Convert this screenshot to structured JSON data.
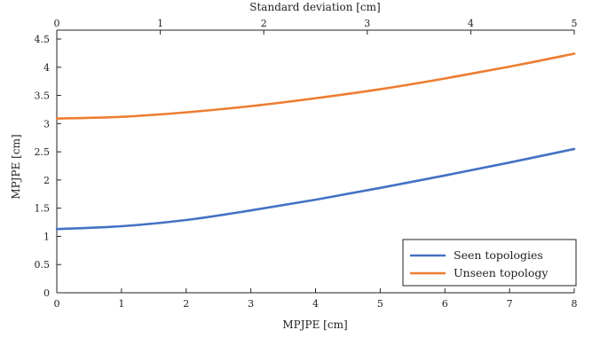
{
  "chart_data": {
    "type": "line",
    "title": "",
    "xlabel": "MPJPE [cm]",
    "ylabel": "MPJPE [cm]",
    "x2label": "Standard deviation [cm]",
    "xlim": [
      0,
      8
    ],
    "ylim": [
      0,
      4.5
    ],
    "x2lim": [
      0,
      5
    ],
    "xticks": [
      "0",
      "1",
      "2",
      "3",
      "4",
      "5",
      "6",
      "7",
      "8"
    ],
    "x2ticks": [
      "0",
      "1",
      "2",
      "3",
      "4",
      "5"
    ],
    "yticks": [
      "0",
      "0.5",
      "1",
      "1.5",
      "2",
      "2.5",
      "3",
      "3.5",
      "4",
      "4.5"
    ],
    "ytick_values": [
      0,
      0.5,
      1,
      1.5,
      2,
      2.5,
      3,
      3.5,
      4,
      4.5
    ],
    "grid": false,
    "legend_position": "bottom-right",
    "series": [
      {
        "name": "Seen topologies",
        "color": "#4472c4",
        "x": [
          0,
          1,
          2,
          3,
          4,
          5,
          6,
          7,
          8
        ],
        "values": [
          1.13,
          1.18,
          1.29,
          1.46,
          1.65,
          1.86,
          2.08,
          2.31,
          2.55
        ]
      },
      {
        "name": "Unseen topology",
        "color": "#ed7d31",
        "x": [
          0,
          1,
          2,
          3,
          4,
          5,
          6,
          7,
          8
        ],
        "values": [
          3.09,
          3.12,
          3.2,
          3.31,
          3.45,
          3.61,
          3.8,
          4.01,
          4.24
        ]
      }
    ]
  }
}
